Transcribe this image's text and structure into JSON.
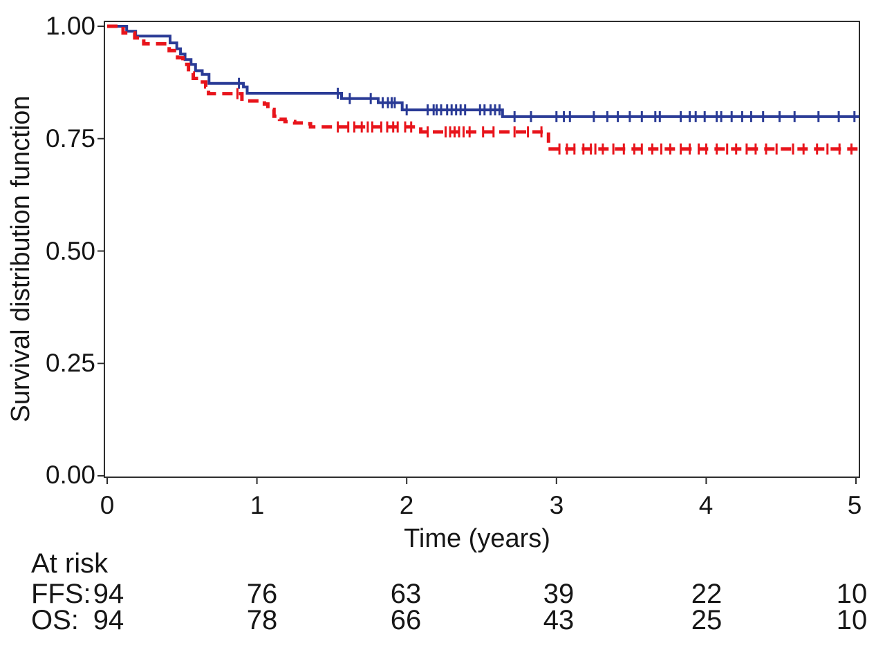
{
  "chart_data": {
    "type": "line",
    "subtype": "kaplan_meier_step",
    "title": "",
    "xlabel": "Time (years)",
    "ylabel": "Survival distribution function",
    "xlim": [
      0,
      5
    ],
    "ylim": [
      0.0,
      1.0
    ],
    "xticks": [
      0,
      1,
      2,
      3,
      4,
      5
    ],
    "xtick_labels": [
      "0",
      "1",
      "2",
      "3",
      "4",
      "5"
    ],
    "yticks": [
      1.0,
      0.75,
      0.5,
      0.25,
      0.0
    ],
    "ytick_labels": [
      "1.00",
      "0.75",
      "0.50",
      "0.25",
      "0.00"
    ],
    "grid": false,
    "legend_position": "none",
    "framed": true,
    "axis_color": "#2d2d2d",
    "text_color": "#161616",
    "series": [
      {
        "name": "OS",
        "description": "overall survival, solid blue step curve with censor tick marks",
        "color": "#2a3b96",
        "line_style": "solid",
        "line_width": 4,
        "steps": [
          [
            0,
            1.0
          ],
          [
            0.13,
            0.989
          ],
          [
            0.19,
            0.978
          ],
          [
            0.42,
            0.963
          ],
          [
            0.465,
            0.95
          ],
          [
            0.49,
            0.938
          ],
          [
            0.52,
            0.926
          ],
          [
            0.56,
            0.915
          ],
          [
            0.59,
            0.901
          ],
          [
            0.635,
            0.893
          ],
          [
            0.68,
            0.873
          ],
          [
            0.91,
            0.865
          ],
          [
            0.935,
            0.851
          ],
          [
            1.565,
            0.839
          ],
          [
            1.81,
            0.83
          ],
          [
            1.97,
            0.814
          ],
          [
            2.64,
            0.799
          ]
        ],
        "final_value": 0.799,
        "censor_times": [
          0.88,
          1.54,
          1.62,
          1.76,
          1.84,
          1.875,
          1.9,
          1.92,
          2.0,
          2.14,
          2.18,
          2.2,
          2.23,
          2.27,
          2.3,
          2.33,
          2.36,
          2.39,
          2.49,
          2.52,
          2.56,
          2.59,
          2.62,
          2.72,
          2.83,
          3.0,
          3.05,
          3.09,
          3.25,
          3.34,
          3.41,
          3.49,
          3.57,
          3.66,
          3.69,
          3.83,
          3.89,
          3.93,
          3.99,
          4.07,
          4.1,
          4.17,
          4.24,
          4.3,
          4.38,
          4.49,
          4.59,
          4.75,
          4.885,
          4.99
        ]
      },
      {
        "name": "FFS",
        "description": "failure-free survival, dashed red step curve with censor tick marks",
        "color": "#e8141b",
        "line_style": "dashed",
        "line_width": 5,
        "steps": [
          [
            0,
            1.0
          ],
          [
            0.106,
            0.985
          ],
          [
            0.184,
            0.974
          ],
          [
            0.244,
            0.961
          ],
          [
            0.414,
            0.946
          ],
          [
            0.47,
            0.93
          ],
          [
            0.506,
            0.915
          ],
          [
            0.543,
            0.896
          ],
          [
            0.575,
            0.884
          ],
          [
            0.621,
            0.876
          ],
          [
            0.658,
            0.865
          ],
          [
            0.677,
            0.85
          ],
          [
            0.9,
            0.834
          ],
          [
            1.05,
            0.827
          ],
          [
            1.073,
            0.815
          ],
          [
            1.114,
            0.8
          ],
          [
            1.151,
            0.793
          ],
          [
            1.188,
            0.788
          ],
          [
            1.252,
            0.785
          ],
          [
            1.326,
            0.783
          ],
          [
            1.358,
            0.776
          ],
          [
            2.094,
            0.765
          ],
          [
            2.947,
            0.727
          ]
        ],
        "final_value": 0.727,
        "censor_times": [
          0.87,
          1.54,
          1.61,
          1.65,
          1.7,
          1.74,
          1.77,
          1.83,
          1.87,
          1.91,
          1.94,
          1.99,
          2.03,
          2.14,
          2.26,
          2.29,
          2.32,
          2.35,
          2.38,
          2.42,
          2.51,
          2.58,
          2.72,
          2.81,
          2.9,
          3.02,
          3.07,
          3.12,
          3.18,
          3.23,
          3.26,
          3.31,
          3.38,
          3.45,
          3.52,
          3.57,
          3.64,
          3.7,
          3.76,
          3.83,
          3.89,
          3.95,
          4.0,
          4.07,
          4.14,
          4.2,
          4.27,
          4.33,
          4.4,
          4.47,
          4.58,
          4.65,
          4.74,
          4.81,
          4.89,
          4.97
        ]
      }
    ],
    "at_risk": {
      "title": "At risk",
      "times": [
        0,
        1,
        2,
        3,
        4,
        5
      ],
      "rows": [
        {
          "label": "FFS:",
          "counts": [
            "94",
            "76",
            "63",
            "39",
            "22",
            "10"
          ]
        },
        {
          "label": "OS:",
          "counts": [
            "94",
            "78",
            "66",
            "43",
            "25",
            "10"
          ]
        }
      ]
    }
  }
}
